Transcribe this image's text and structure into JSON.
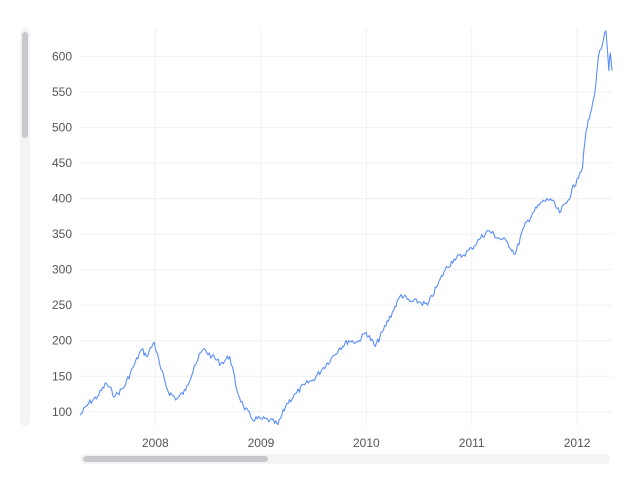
{
  "chart_data": {
    "type": "line",
    "title": "",
    "xlabel": "",
    "ylabel": "",
    "x_range": [
      "2007-04-15",
      "2012-05-01"
    ],
    "ylim": [
      80,
      640
    ],
    "y_ticks": [
      100,
      150,
      200,
      250,
      300,
      350,
      400,
      450,
      500,
      550,
      600
    ],
    "x_ticks": [
      {
        "date": "2008-01-01",
        "label": "2008"
      },
      {
        "date": "2009-01-01",
        "label": "2009"
      },
      {
        "date": "2010-01-01",
        "label": "2010"
      },
      {
        "date": "2011-01-01",
        "label": "2011"
      },
      {
        "date": "2012-01-01",
        "label": "2012"
      }
    ],
    "grid": true,
    "legend": "none",
    "series": [
      {
        "color": "#5b8ff9",
        "points": [
          [
            "2007-04-15",
            95
          ],
          [
            "2007-05-15",
            112
          ],
          [
            "2007-06-15",
            122
          ],
          [
            "2007-07-15",
            140
          ],
          [
            "2007-08-15",
            122
          ],
          [
            "2007-09-15",
            135
          ],
          [
            "2007-10-15",
            162
          ],
          [
            "2007-11-15",
            188
          ],
          [
            "2007-12-01",
            178
          ],
          [
            "2007-12-28",
            198
          ],
          [
            "2008-01-20",
            160
          ],
          [
            "2008-02-15",
            128
          ],
          [
            "2008-03-15",
            118
          ],
          [
            "2008-04-15",
            130
          ],
          [
            "2008-05-15",
            165
          ],
          [
            "2008-06-15",
            188
          ],
          [
            "2008-07-15",
            178
          ],
          [
            "2008-08-15",
            168
          ],
          [
            "2008-09-15",
            178
          ],
          [
            "2008-10-10",
            130
          ],
          [
            "2008-11-01",
            108
          ],
          [
            "2008-12-01",
            90
          ],
          [
            "2009-01-01",
            90
          ],
          [
            "2009-02-01",
            88
          ],
          [
            "2009-03-01",
            82
          ],
          [
            "2009-04-01",
            112
          ],
          [
            "2009-05-01",
            125
          ],
          [
            "2009-06-01",
            138
          ],
          [
            "2009-07-01",
            145
          ],
          [
            "2009-08-01",
            160
          ],
          [
            "2009-09-01",
            175
          ],
          [
            "2009-10-01",
            190
          ],
          [
            "2009-11-01",
            200
          ],
          [
            "2009-12-01",
            198
          ],
          [
            "2009-12-31",
            212
          ],
          [
            "2010-02-01",
            192
          ],
          [
            "2010-03-01",
            215
          ],
          [
            "2010-04-01",
            240
          ],
          [
            "2010-05-01",
            265
          ],
          [
            "2010-06-01",
            255
          ],
          [
            "2010-07-01",
            255
          ],
          [
            "2010-08-01",
            250
          ],
          [
            "2010-09-01",
            275
          ],
          [
            "2010-10-01",
            300
          ],
          [
            "2010-11-01",
            315
          ],
          [
            "2010-12-01",
            320
          ],
          [
            "2011-01-01",
            330
          ],
          [
            "2011-02-01",
            345
          ],
          [
            "2011-03-01",
            355
          ],
          [
            "2011-04-01",
            345
          ],
          [
            "2011-05-01",
            340
          ],
          [
            "2011-06-01",
            322
          ],
          [
            "2011-07-01",
            360
          ],
          [
            "2011-08-01",
            380
          ],
          [
            "2011-09-01",
            395
          ],
          [
            "2011-10-01",
            400
          ],
          [
            "2011-11-01",
            380
          ],
          [
            "2011-12-01",
            398
          ],
          [
            "2012-01-01",
            428
          ],
          [
            "2012-01-20",
            445
          ],
          [
            "2012-02-01",
            495
          ],
          [
            "2012-02-20",
            525
          ],
          [
            "2012-03-01",
            545
          ],
          [
            "2012-03-15",
            600
          ],
          [
            "2012-04-01",
            622
          ],
          [
            "2012-04-10",
            636
          ],
          [
            "2012-04-20",
            580
          ],
          [
            "2012-04-25",
            605
          ],
          [
            "2012-05-01",
            580
          ]
        ]
      }
    ]
  }
}
